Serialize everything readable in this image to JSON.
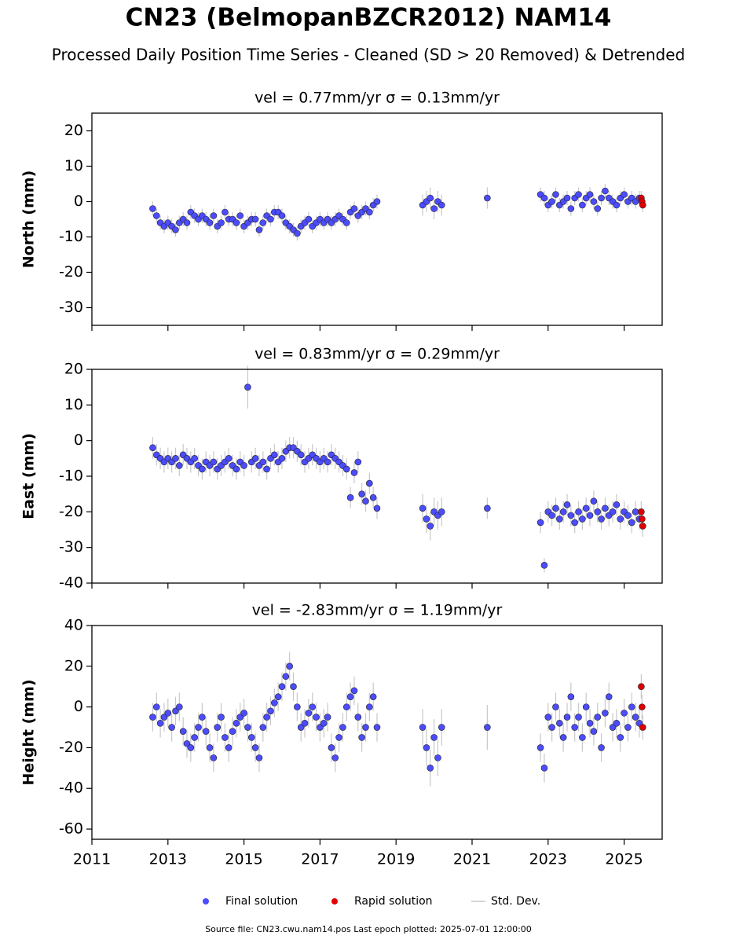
{
  "title": "CN23 (BelmopanBZCR2012) NAM14",
  "subtitle": "Processed Daily Position Time Series - Cleaned (SD > 20 Removed) & Detrended",
  "legend": {
    "items": [
      {
        "name": "Final solution",
        "color": "#4c4cff"
      },
      {
        "name": "Rapid solution",
        "color": "#e00000"
      },
      {
        "name": "Std. Dev.",
        "color": "#c8c8c8"
      }
    ]
  },
  "footnote": "Source file: CN23.cwu.nam14.pos  Last epoch plotted: 2025-07-01 12:00:00",
  "chart_data": [
    {
      "type": "scatter",
      "title": "vel = 0.77mm/yr   σ = 0.13mm/yr",
      "y_label": "North (mm)",
      "xlim": [
        2011,
        2026
      ],
      "xticks": [
        2011,
        2013,
        2015,
        2017,
        2019,
        2021,
        2023,
        2025
      ],
      "ylim": [
        -35,
        25
      ],
      "yticks": [
        -30,
        -20,
        -10,
        0,
        10,
        20
      ],
      "series": [
        {
          "color": "#4c4cff",
          "x": [
            2012.6,
            2012.7,
            2012.8,
            2012.9,
            2013.0,
            2013.1,
            2013.2,
            2013.3,
            2013.4,
            2013.5,
            2013.6,
            2013.7,
            2013.8,
            2013.9,
            2014.0,
            2014.1,
            2014.2,
            2014.3,
            2014.4,
            2014.5,
            2014.6,
            2014.7,
            2014.8,
            2014.9,
            2015.0,
            2015.1,
            2015.2,
            2015.3,
            2015.4,
            2015.5,
            2015.6,
            2015.7,
            2015.8,
            2015.9,
            2016.0,
            2016.1,
            2016.2,
            2016.3,
            2016.4,
            2016.5,
            2016.6,
            2016.7,
            2016.8,
            2016.9,
            2017.0,
            2017.1,
            2017.2,
            2017.3,
            2017.4,
            2017.5,
            2017.6,
            2017.7,
            2017.8,
            2017.9,
            2018.0,
            2018.1,
            2018.2,
            2018.3,
            2018.4,
            2018.5,
            2019.7,
            2019.8,
            2019.9,
            2020.0,
            2020.1,
            2020.2,
            2021.4,
            2022.8,
            2022.9,
            2023.0,
            2023.1,
            2023.2,
            2023.3,
            2023.4,
            2023.5,
            2023.6,
            2023.7,
            2023.8,
            2023.9,
            2024.0,
            2024.1,
            2024.2,
            2024.3,
            2024.4,
            2024.5,
            2024.6,
            2024.7,
            2024.8,
            2024.9,
            2025.0,
            2025.1,
            2025.2,
            2025.3,
            2025.4
          ],
          "values": [
            -2,
            -4,
            -6,
            -7,
            -6,
            -7,
            -8,
            -6,
            -5,
            -6,
            -3,
            -4,
            -5,
            -4,
            -5,
            -6,
            -4,
            -7,
            -6,
            -3,
            -5,
            -5,
            -6,
            -4,
            -7,
            -6,
            -5,
            -5,
            -8,
            -6,
            -4,
            -5,
            -3,
            -3,
            -4,
            -6,
            -7,
            -8,
            -9,
            -7,
            -6,
            -5,
            -7,
            -6,
            -5,
            -6,
            -5,
            -6,
            -5,
            -4,
            -5,
            -6,
            -3,
            -2,
            -4,
            -3,
            -2,
            -3,
            -1,
            0,
            -1,
            0,
            1,
            -2,
            0,
            -1,
            1,
            2,
            1,
            -1,
            0,
            2,
            -1,
            0,
            1,
            -2,
            1,
            2,
            -1,
            1,
            2,
            0,
            -2,
            1,
            3,
            1,
            0,
            -1,
            1,
            2,
            0,
            1,
            0,
            1
          ],
          "errors": [
            2,
            2,
            2,
            2,
            2,
            2,
            2,
            2,
            2,
            2,
            2,
            2,
            2,
            2,
            2,
            2,
            2,
            2,
            2,
            2,
            2,
            2,
            2,
            2,
            2,
            2,
            2,
            2,
            2,
            2,
            2,
            2,
            2,
            2,
            2,
            2,
            2,
            2,
            2,
            2,
            2,
            2,
            2,
            2,
            2,
            2,
            2,
            2,
            2,
            2,
            2,
            2,
            2,
            2,
            2,
            2,
            2,
            2,
            2,
            2,
            3,
            3,
            3,
            3,
            3,
            3,
            3,
            2,
            2,
            2,
            2,
            2,
            2,
            2,
            2,
            2,
            2,
            2,
            2,
            2,
            2,
            2,
            2,
            2,
            2,
            2,
            2,
            2,
            2,
            2,
            2,
            2,
            2,
            2
          ]
        },
        {
          "color": "#e00000",
          "x": [
            2025.45,
            2025.47,
            2025.49
          ],
          "values": [
            1,
            0,
            -1
          ],
          "errors": [
            2,
            2,
            2
          ]
        }
      ]
    },
    {
      "type": "scatter",
      "title": "vel = 0.83mm/yr   σ = 0.29mm/yr",
      "y_label": "East (mm)",
      "xlim": [
        2011,
        2026
      ],
      "xticks": [
        2011,
        2013,
        2015,
        2017,
        2019,
        2021,
        2023,
        2025
      ],
      "ylim": [
        -40,
        20
      ],
      "yticks": [
        -40,
        -30,
        -20,
        -10,
        0,
        10,
        20
      ],
      "series": [
        {
          "color": "#4c4cff",
          "x": [
            2012.6,
            2012.7,
            2012.8,
            2012.9,
            2013.0,
            2013.1,
            2013.2,
            2013.3,
            2013.4,
            2013.5,
            2013.6,
            2013.7,
            2013.8,
            2013.9,
            2014.0,
            2014.1,
            2014.2,
            2014.3,
            2014.4,
            2014.5,
            2014.6,
            2014.7,
            2014.8,
            2014.9,
            2015.0,
            2015.1,
            2015.2,
            2015.3,
            2015.4,
            2015.5,
            2015.6,
            2015.7,
            2015.8,
            2015.9,
            2016.0,
            2016.1,
            2016.2,
            2016.3,
            2016.4,
            2016.5,
            2016.6,
            2016.7,
            2016.8,
            2016.9,
            2017.0,
            2017.1,
            2017.2,
            2017.3,
            2017.4,
            2017.5,
            2017.6,
            2017.7,
            2017.8,
            2017.9,
            2018.0,
            2018.1,
            2018.2,
            2018.3,
            2018.4,
            2018.5,
            2019.7,
            2019.8,
            2019.9,
            2020.0,
            2020.1,
            2020.2,
            2021.4,
            2022.8,
            2022.9,
            2023.0,
            2023.1,
            2023.2,
            2023.3,
            2023.4,
            2023.5,
            2023.6,
            2023.7,
            2023.8,
            2023.9,
            2024.0,
            2024.1,
            2024.2,
            2024.3,
            2024.4,
            2024.5,
            2024.6,
            2024.7,
            2024.8,
            2024.9,
            2025.0,
            2025.1,
            2025.2,
            2025.3,
            2025.4
          ],
          "values": [
            -2,
            -4,
            -5,
            -6,
            -5,
            -6,
            -5,
            -7,
            -4,
            -5,
            -6,
            -5,
            -7,
            -8,
            -6,
            -7,
            -6,
            -8,
            -7,
            -6,
            -5,
            -7,
            -8,
            -6,
            -7,
            15,
            -6,
            -5,
            -7,
            -6,
            -8,
            -5,
            -4,
            -6,
            -5,
            -3,
            -2,
            -2,
            -3,
            -4,
            -6,
            -5,
            -4,
            -5,
            -6,
            -5,
            -6,
            -4,
            -5,
            -6,
            -7,
            -8,
            -16,
            -9,
            -6,
            -15,
            -17,
            -12,
            -16,
            -19,
            -19,
            -22,
            -24,
            -20,
            -21,
            -20,
            -19,
            -23,
            -35,
            -20,
            -21,
            -19,
            -22,
            -20,
            -18,
            -21,
            -23,
            -20,
            -22,
            -19,
            -21,
            -17,
            -20,
            -22,
            -19,
            -21,
            -20,
            -18,
            -22,
            -20,
            -21,
            -23,
            -20,
            -22
          ],
          "errors": [
            3,
            3,
            3,
            3,
            3,
            3,
            3,
            3,
            3,
            3,
            3,
            3,
            3,
            3,
            3,
            3,
            3,
            3,
            3,
            3,
            3,
            3,
            3,
            3,
            3,
            6,
            3,
            3,
            3,
            3,
            3,
            3,
            3,
            3,
            3,
            3,
            3,
            3,
            3,
            3,
            3,
            3,
            3,
            3,
            3,
            3,
            3,
            3,
            3,
            3,
            3,
            3,
            3,
            3,
            3,
            3,
            3,
            3,
            3,
            3,
            4,
            4,
            4,
            4,
            4,
            4,
            3,
            3,
            2,
            3,
            3,
            3,
            3,
            3,
            3,
            3,
            3,
            3,
            3,
            3,
            3,
            3,
            3,
            3,
            3,
            3,
            3,
            3,
            3,
            3,
            3,
            3,
            3,
            3
          ]
        },
        {
          "color": "#e00000",
          "x": [
            2025.45,
            2025.47,
            2025.49
          ],
          "values": [
            -20,
            -22,
            -24
          ],
          "errors": [
            3,
            3,
            3
          ]
        }
      ]
    },
    {
      "type": "scatter",
      "title": "vel = -2.83mm/yr   σ = 1.19mm/yr",
      "y_label": "Height (mm)",
      "xlim": [
        2011,
        2026
      ],
      "xticks": [
        2011,
        2013,
        2015,
        2017,
        2019,
        2021,
        2023,
        2025
      ],
      "ylim": [
        -65,
        40
      ],
      "yticks": [
        -60,
        -40,
        -20,
        0,
        20,
        40
      ],
      "series": [
        {
          "color": "#4c4cff",
          "x": [
            2012.6,
            2012.7,
            2012.8,
            2012.9,
            2013.0,
            2013.1,
            2013.2,
            2013.3,
            2013.4,
            2013.5,
            2013.6,
            2013.7,
            2013.8,
            2013.9,
            2014.0,
            2014.1,
            2014.2,
            2014.3,
            2014.4,
            2014.5,
            2014.6,
            2014.7,
            2014.8,
            2014.9,
            2015.0,
            2015.1,
            2015.2,
            2015.3,
            2015.4,
            2015.5,
            2015.6,
            2015.7,
            2015.8,
            2015.9,
            2016.0,
            2016.1,
            2016.2,
            2016.3,
            2016.4,
            2016.5,
            2016.6,
            2016.7,
            2016.8,
            2016.9,
            2017.0,
            2017.1,
            2017.2,
            2017.3,
            2017.4,
            2017.5,
            2017.6,
            2017.7,
            2017.8,
            2017.9,
            2018.0,
            2018.1,
            2018.2,
            2018.3,
            2018.4,
            2018.5,
            2019.7,
            2019.8,
            2019.9,
            2020.0,
            2020.1,
            2020.2,
            2021.4,
            2022.8,
            2022.9,
            2023.0,
            2023.1,
            2023.2,
            2023.3,
            2023.4,
            2023.5,
            2023.6,
            2023.7,
            2023.8,
            2023.9,
            2024.0,
            2024.1,
            2024.2,
            2024.3,
            2024.4,
            2024.5,
            2024.6,
            2024.7,
            2024.8,
            2024.9,
            2025.0,
            2025.1,
            2025.2,
            2025.3,
            2025.4
          ],
          "values": [
            -5,
            0,
            -8,
            -5,
            -3,
            -10,
            -2,
            0,
            -12,
            -18,
            -20,
            -15,
            -10,
            -5,
            -12,
            -20,
            -25,
            -10,
            -5,
            -15,
            -20,
            -12,
            -8,
            -5,
            -3,
            -10,
            -15,
            -20,
            -25,
            -10,
            -5,
            -2,
            2,
            5,
            10,
            15,
            20,
            10,
            0,
            -10,
            -8,
            -3,
            0,
            -5,
            -10,
            -8,
            -5,
            -20,
            -25,
            -15,
            -10,
            0,
            5,
            8,
            -5,
            -15,
            -10,
            0,
            5,
            -10,
            -10,
            -20,
            -30,
            -15,
            -25,
            -10,
            -10,
            -20,
            -30,
            -5,
            -10,
            0,
            -8,
            -15,
            -5,
            5,
            -10,
            -5,
            -15,
            0,
            -8,
            -12,
            -5,
            -20,
            -3,
            5,
            -10,
            -8,
            -15,
            -3,
            -10,
            0,
            -5,
            -8
          ],
          "errors": [
            7,
            7,
            7,
            7,
            7,
            7,
            7,
            7,
            7,
            7,
            7,
            7,
            7,
            7,
            7,
            7,
            7,
            7,
            7,
            7,
            7,
            7,
            7,
            7,
            7,
            7,
            7,
            7,
            7,
            7,
            7,
            7,
            7,
            7,
            7,
            7,
            7,
            7,
            7,
            7,
            7,
            7,
            7,
            7,
            7,
            7,
            7,
            7,
            7,
            7,
            7,
            7,
            7,
            7,
            7,
            7,
            7,
            7,
            7,
            7,
            9,
            9,
            9,
            9,
            9,
            9,
            11,
            7,
            7,
            7,
            7,
            7,
            7,
            7,
            7,
            7,
            7,
            7,
            7,
            7,
            7,
            7,
            7,
            7,
            7,
            7,
            7,
            7,
            7,
            7,
            7,
            7,
            7,
            7
          ]
        },
        {
          "color": "#e00000",
          "x": [
            2025.45,
            2025.47,
            2025.49
          ],
          "values": [
            10,
            0,
            -10
          ],
          "errors": [
            6,
            6,
            6
          ]
        }
      ]
    }
  ]
}
